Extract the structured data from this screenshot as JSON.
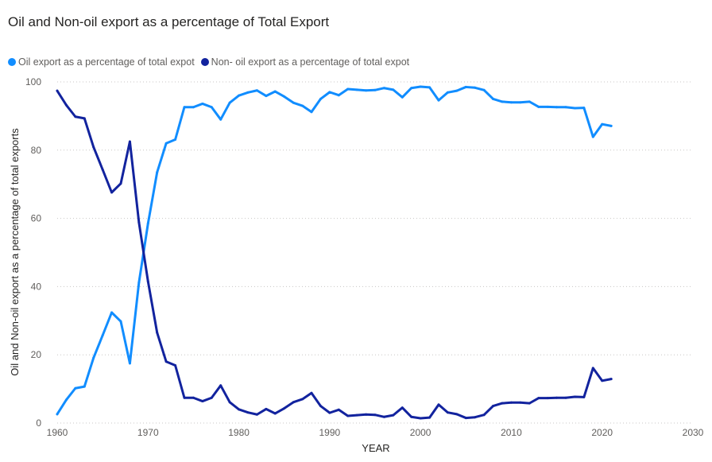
{
  "chart_data": {
    "type": "line",
    "title": "Oil and Non-oil export as a percentage of Total Export",
    "xlabel": "YEAR",
    "ylabel": "Oil and Non-oil export as a percentage of total exports",
    "xlim": [
      1960,
      2030
    ],
    "ylim": [
      0,
      100
    ],
    "x_ticks": [
      "1960",
      "1970",
      "1980",
      "1990",
      "2000",
      "2010",
      "2020",
      "2030"
    ],
    "y_ticks": [
      "0",
      "20",
      "40",
      "60",
      "80",
      "100"
    ],
    "grid": "horizontal dotted",
    "legend_position": "top-left",
    "x": [
      1960,
      1961,
      1962,
      1963,
      1964,
      1965,
      1966,
      1967,
      1968,
      1969,
      1970,
      1971,
      1972,
      1973,
      1974,
      1975,
      1976,
      1977,
      1978,
      1979,
      1980,
      1981,
      1982,
      1983,
      1984,
      1985,
      1986,
      1987,
      1988,
      1989,
      1990,
      1991,
      1992,
      1993,
      1994,
      1995,
      1996,
      1997,
      1998,
      1999,
      2000,
      2001,
      2002,
      2003,
      2004,
      2005,
      2006,
      2007,
      2008,
      2009,
      2010,
      2011,
      2012,
      2013,
      2014,
      2015,
      2016,
      2017,
      2018,
      2019,
      2020,
      2021
    ],
    "series": [
      {
        "name": "Oil export as a percentage of total expot",
        "color": "#118dff",
        "values": [
          2.6,
          6.8,
          10.2,
          10.7,
          19.1,
          25.7,
          32.4,
          29.8,
          17.5,
          41.2,
          58.5,
          73.5,
          82.0,
          83.1,
          92.6,
          92.6,
          93.6,
          92.6,
          89.0,
          93.9,
          96.0,
          96.9,
          97.5,
          95.9,
          97.2,
          95.7,
          93.9,
          93.0,
          91.2,
          95.0,
          97.0,
          96.1,
          97.9,
          97.7,
          97.5,
          97.6,
          98.2,
          97.7,
          95.5,
          98.2,
          98.6,
          98.4,
          94.6,
          96.9,
          97.4,
          98.5,
          98.3,
          97.6,
          95.0,
          94.2,
          94.0,
          94.0,
          94.2,
          92.7,
          92.7,
          92.6,
          92.6,
          92.3,
          92.4,
          83.9,
          87.6,
          87.1
        ]
      },
      {
        "name": "Non- oil export as a percentage of total expot",
        "color": "#12239e",
        "values": [
          97.4,
          93.2,
          89.8,
          89.3,
          80.9,
          74.3,
          67.6,
          70.2,
          82.5,
          58.8,
          41.5,
          26.5,
          18.0,
          16.9,
          7.4,
          7.4,
          6.4,
          7.4,
          11.0,
          6.1,
          4.0,
          3.1,
          2.5,
          4.1,
          2.8,
          4.3,
          6.1,
          7.0,
          8.8,
          5.0,
          3.0,
          3.9,
          2.1,
          2.3,
          2.5,
          2.4,
          1.8,
          2.3,
          4.5,
          1.8,
          1.4,
          1.6,
          5.4,
          3.1,
          2.6,
          1.5,
          1.7,
          2.4,
          5.0,
          5.8,
          6.0,
          6.0,
          5.8,
          7.3,
          7.3,
          7.4,
          7.4,
          7.7,
          7.6,
          16.1,
          12.4,
          12.9
        ]
      }
    ]
  }
}
